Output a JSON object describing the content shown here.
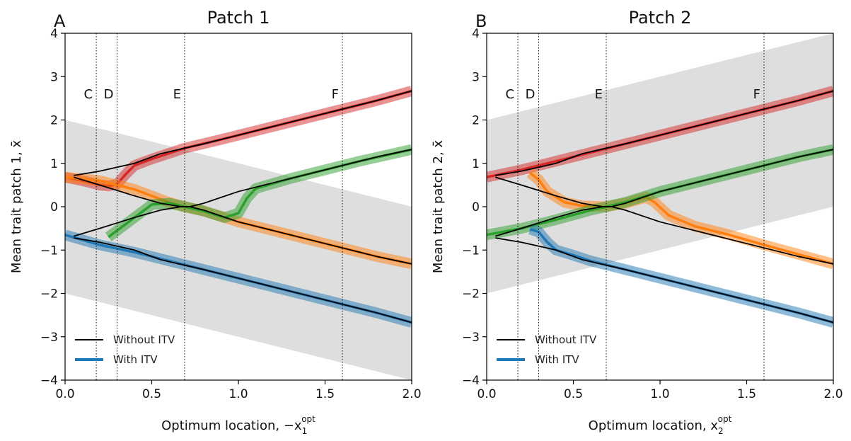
{
  "chart_data": [
    {
      "type": "line",
      "panel_label": "A",
      "title": "Patch 1",
      "ylabel": "Mean trait patch 1, x̄",
      "xlabel_main": "Optimum location, −x",
      "xlabel_sub": "1",
      "xlabel_sup": "opt",
      "xlim": [
        0.0,
        2.0
      ],
      "ylim": [
        -4,
        4
      ],
      "xticks": [
        0.0,
        0.5,
        1.0,
        1.5,
        2.0
      ],
      "xtick_labels": [
        "0.0",
        "0.5",
        "1.0",
        "1.5",
        "2.0"
      ],
      "yticks": [
        -4,
        -3,
        -2,
        -1,
        0,
        1,
        2,
        3,
        4
      ],
      "ytick_labels": [
        "−4",
        "−3",
        "−2",
        "−1",
        "0",
        "1",
        "2",
        "3",
        "4"
      ],
      "band": {
        "x": [
          0,
          2
        ],
        "upper": [
          2.0,
          0.0
        ],
        "lower": [
          -2.0,
          -4.0
        ]
      },
      "vlines": [
        {
          "x": 0.18,
          "label": "C"
        },
        {
          "x": 0.3,
          "label": "D"
        },
        {
          "x": 0.69,
          "label": "E"
        },
        {
          "x": 1.6,
          "label": "F"
        }
      ],
      "series": [
        {
          "name": "Without ITV",
          "kind": "without",
          "color": "#000000",
          "x": [
            0.05,
            0.2,
            0.4,
            0.55,
            0.69,
            0.8,
            1.0,
            1.2,
            1.4,
            1.6,
            1.8,
            2.0
          ],
          "y": [
            0.72,
            0.82,
            1.0,
            1.22,
            1.35,
            1.45,
            1.65,
            1.85,
            2.05,
            2.25,
            2.45,
            2.67
          ]
        },
        {
          "kind": "without",
          "color": "#000000",
          "x": [
            0.05,
            0.2,
            0.4,
            0.55,
            0.67,
            0.72,
            0.8,
            1.0,
            1.2,
            1.4,
            1.6,
            1.8,
            2.0
          ],
          "y": [
            0.68,
            0.5,
            0.25,
            0.08,
            0.0,
            0.0,
            -0.08,
            -0.35,
            -0.55,
            -0.75,
            -0.95,
            -1.15,
            -1.32
          ]
        },
        {
          "kind": "without",
          "color": "#000000",
          "x": [
            0.05,
            0.2,
            0.4,
            0.55,
            0.67,
            0.72,
            0.8,
            1.0,
            1.2,
            1.4,
            1.6,
            1.8,
            2.0
          ],
          "y": [
            -0.68,
            -0.5,
            -0.25,
            -0.08,
            0.0,
            0.0,
            0.08,
            0.35,
            0.55,
            0.75,
            0.95,
            1.15,
            1.32
          ]
        },
        {
          "kind": "without",
          "color": "#000000",
          "x": [
            0.05,
            0.2,
            0.4,
            0.55,
            0.69,
            0.8,
            1.0,
            1.2,
            1.4,
            1.6,
            1.8,
            2.0
          ],
          "y": [
            -0.72,
            -0.82,
            -1.0,
            -1.22,
            -1.35,
            -1.45,
            -1.65,
            -1.85,
            -2.05,
            -2.25,
            -2.45,
            -2.67
          ]
        },
        {
          "name": "With ITV",
          "kind": "with",
          "color": "#d62728",
          "x": [
            0.0,
            0.1,
            0.2,
            0.25,
            0.3,
            0.35,
            0.4,
            0.5,
            0.69,
            0.9,
            1.2,
            1.5,
            1.8,
            2.0
          ],
          "y": [
            0.68,
            0.6,
            0.5,
            0.48,
            0.52,
            0.75,
            0.95,
            1.1,
            1.35,
            1.55,
            1.85,
            2.15,
            2.45,
            2.67
          ]
        },
        {
          "kind": "with",
          "color": "#ff7f0e",
          "x": [
            0.0,
            0.2,
            0.4,
            0.6,
            0.69,
            0.8,
            0.92,
            1.0,
            1.2,
            1.4,
            1.6,
            1.8,
            2.0
          ],
          "y": [
            0.68,
            0.6,
            0.4,
            0.1,
            0.0,
            -0.1,
            -0.25,
            -0.35,
            -0.55,
            -0.75,
            -0.95,
            -1.15,
            -1.32
          ]
        },
        {
          "kind": "with",
          "color": "#2ca02c",
          "x": [
            0.25,
            0.3,
            0.4,
            0.5,
            0.6,
            0.69,
            0.8,
            0.92,
            1.0,
            1.05,
            1.1,
            1.3,
            1.5,
            1.7,
            2.0
          ],
          "y": [
            -0.7,
            -0.55,
            -0.25,
            0.05,
            0.08,
            0.0,
            -0.1,
            -0.25,
            -0.15,
            0.2,
            0.42,
            0.65,
            0.85,
            1.05,
            1.32
          ]
        },
        {
          "kind": "with",
          "color": "#1f77b4",
          "x": [
            0.0,
            0.2,
            0.4,
            0.6,
            0.8,
            1.0,
            1.2,
            1.4,
            1.6,
            1.8,
            2.0
          ],
          "y": [
            -0.65,
            -0.88,
            -1.05,
            -1.25,
            -1.45,
            -1.65,
            -1.85,
            -2.05,
            -2.25,
            -2.45,
            -2.67
          ]
        }
      ],
      "legend": {
        "position": "bottom-left",
        "entries": [
          {
            "label": "Without ITV",
            "color": "#000000"
          },
          {
            "label": "With ITV",
            "color": "#1f77b4"
          }
        ]
      }
    },
    {
      "type": "line",
      "panel_label": "B",
      "title": "Patch 2",
      "ylabel": "Mean trait patch 2, x̄",
      "xlabel_main": "Optimum location, x",
      "xlabel_sub": "2",
      "xlabel_sup": "opt",
      "xlim": [
        0.0,
        2.0
      ],
      "ylim": [
        -4,
        4
      ],
      "xticks": [
        0.0,
        0.5,
        1.0,
        1.5,
        2.0
      ],
      "xtick_labels": [
        "0.0",
        "0.5",
        "1.0",
        "1.5",
        "2.0"
      ],
      "yticks": [
        -4,
        -3,
        -2,
        -1,
        0,
        1,
        2,
        3,
        4
      ],
      "ytick_labels": [
        "−4",
        "−3",
        "−2",
        "−1",
        "0",
        "1",
        "2",
        "3",
        "4"
      ],
      "band": {
        "x": [
          0,
          2
        ],
        "upper": [
          2.0,
          4.0
        ],
        "lower": [
          -2.0,
          0.0
        ]
      },
      "vlines": [
        {
          "x": 0.18,
          "label": "C"
        },
        {
          "x": 0.3,
          "label": "D"
        },
        {
          "x": 0.69,
          "label": "E"
        },
        {
          "x": 1.6,
          "label": "F"
        }
      ],
      "series": [
        {
          "kind": "without",
          "color": "#000000",
          "x": [
            0.05,
            0.2,
            0.4,
            0.55,
            0.69,
            0.8,
            1.0,
            1.2,
            1.4,
            1.6,
            1.8,
            2.0
          ],
          "y": [
            0.72,
            0.82,
            1.0,
            1.22,
            1.35,
            1.45,
            1.65,
            1.85,
            2.05,
            2.25,
            2.45,
            2.67
          ]
        },
        {
          "kind": "without",
          "color": "#000000",
          "x": [
            0.05,
            0.2,
            0.4,
            0.55,
            0.67,
            0.72,
            0.8,
            1.0,
            1.2,
            1.4,
            1.6,
            1.8,
            2.0
          ],
          "y": [
            0.68,
            0.5,
            0.25,
            0.08,
            0.0,
            0.0,
            -0.08,
            -0.35,
            -0.55,
            -0.75,
            -0.95,
            -1.15,
            -1.32
          ]
        },
        {
          "kind": "without",
          "color": "#000000",
          "x": [
            0.05,
            0.2,
            0.4,
            0.55,
            0.67,
            0.72,
            0.8,
            1.0,
            1.2,
            1.4,
            1.6,
            1.8,
            2.0
          ],
          "y": [
            -0.68,
            -0.5,
            -0.25,
            -0.08,
            0.0,
            0.0,
            0.08,
            0.35,
            0.55,
            0.75,
            0.95,
            1.15,
            1.32
          ]
        },
        {
          "kind": "without",
          "color": "#000000",
          "x": [
            0.05,
            0.2,
            0.4,
            0.55,
            0.69,
            0.8,
            1.0,
            1.2,
            1.4,
            1.6,
            1.8,
            2.0
          ],
          "y": [
            -0.72,
            -0.82,
            -1.0,
            -1.22,
            -1.35,
            -1.45,
            -1.65,
            -1.85,
            -2.05,
            -2.25,
            -2.45,
            -2.67
          ]
        },
        {
          "kind": "with",
          "color": "#d62728",
          "x": [
            0.0,
            0.2,
            0.4,
            0.6,
            0.8,
            1.0,
            1.2,
            1.4,
            1.6,
            1.8,
            2.0
          ],
          "y": [
            0.68,
            0.85,
            1.05,
            1.25,
            1.45,
            1.65,
            1.85,
            2.05,
            2.25,
            2.45,
            2.67
          ]
        },
        {
          "kind": "with",
          "color": "#ff7f0e",
          "x": [
            0.25,
            0.3,
            0.35,
            0.45,
            0.55,
            0.69,
            0.8,
            0.92,
            0.97,
            1.05,
            1.2,
            1.4,
            1.6,
            1.8,
            2.0
          ],
          "y": [
            0.78,
            0.62,
            0.35,
            0.1,
            0.02,
            0.0,
            0.08,
            0.22,
            0.1,
            -0.2,
            -0.45,
            -0.65,
            -0.88,
            -1.1,
            -1.32
          ]
        },
        {
          "kind": "with",
          "color": "#2ca02c",
          "x": [
            0.0,
            0.2,
            0.4,
            0.6,
            0.69,
            0.8,
            0.92,
            1.0,
            1.2,
            1.4,
            1.6,
            1.8,
            2.0
          ],
          "y": [
            -0.65,
            -0.5,
            -0.3,
            -0.08,
            0.0,
            0.1,
            0.25,
            0.35,
            0.55,
            0.75,
            0.95,
            1.15,
            1.32
          ]
        },
        {
          "kind": "with",
          "color": "#1f77b4",
          "x": [
            0.25,
            0.3,
            0.35,
            0.4,
            0.5,
            0.6,
            0.8,
            1.0,
            1.2,
            1.4,
            1.6,
            1.8,
            2.0
          ],
          "y": [
            -0.52,
            -0.58,
            -0.82,
            -1.0,
            -1.12,
            -1.25,
            -1.45,
            -1.65,
            -1.85,
            -2.05,
            -2.25,
            -2.45,
            -2.67
          ]
        }
      ],
      "legend": {
        "position": "bottom-left",
        "entries": [
          {
            "label": "Without ITV",
            "color": "#000000"
          },
          {
            "label": "With ITV",
            "color": "#1f77b4"
          }
        ]
      }
    }
  ]
}
